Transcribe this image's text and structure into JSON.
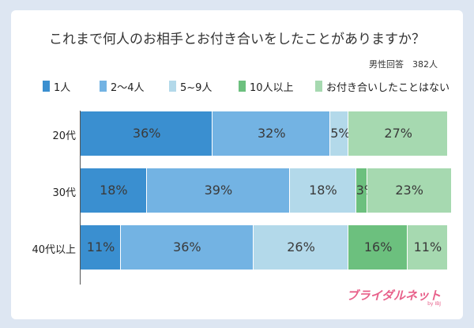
{
  "chart_data": {
    "type": "bar",
    "orientation": "horizontal-stacked-100",
    "title": "これまで何人のお相手とお付き合いをしたことがありますか？",
    "note": "男性回答　382人",
    "categories": [
      "20代",
      "30代",
      "40代以上"
    ],
    "series": [
      {
        "name": "1人",
        "color": "#3a8fd0",
        "values": [
          36,
          18,
          11
        ]
      },
      {
        "name": "2～4人",
        "color": "#73b3e3",
        "values": [
          32,
          39,
          36
        ]
      },
      {
        "name": "5~9人",
        "color": "#b3d9ea",
        "values": [
          5,
          18,
          26
        ]
      },
      {
        "name": "10人以上",
        "color": "#6cc07e",
        "values": [
          0,
          3,
          16
        ]
      },
      {
        "name": "お付き合いしたことはない",
        "color": "#a6d9b0",
        "values": [
          27,
          23,
          11
        ]
      }
    ],
    "value_suffix": "%",
    "xlim": [
      0,
      100
    ]
  },
  "brand": {
    "logo": "ブライダルネット",
    "sub": "by IBJ"
  }
}
